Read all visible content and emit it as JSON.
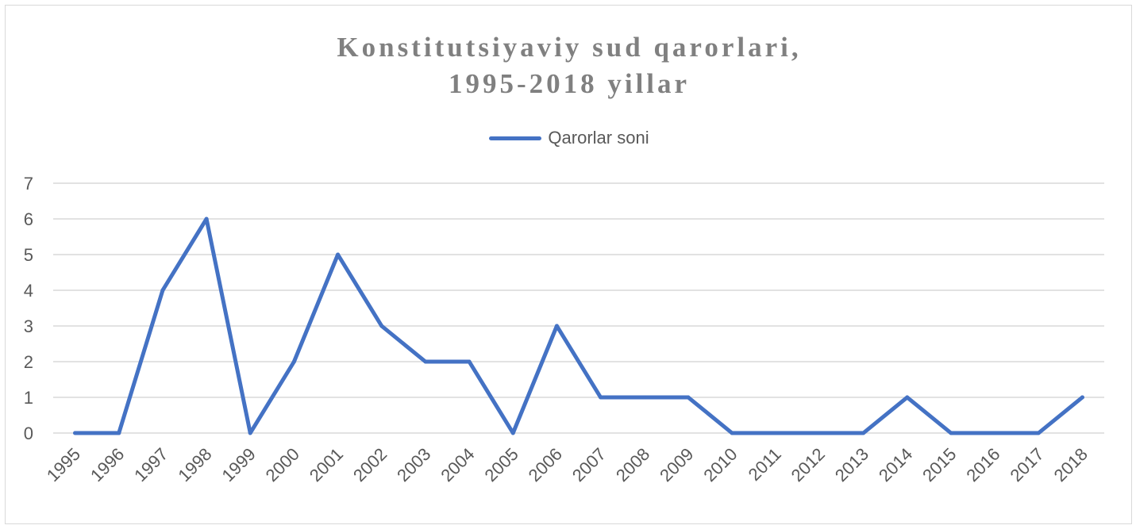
{
  "chart_data": {
    "type": "line",
    "title_line1": "Konstitutsiyaviy sud qarorlari,",
    "title_line2": "1995-2018 yillar",
    "categories": [
      "1995",
      "1996",
      "1997",
      "1998",
      "1999",
      "2000",
      "2001",
      "2002",
      "2003",
      "2004",
      "2005",
      "2006",
      "2007",
      "2008",
      "2009",
      "2010",
      "2011",
      "2012",
      "2013",
      "2014",
      "2015",
      "2016",
      "2017",
      "2018"
    ],
    "series": [
      {
        "name": "Qarorlar soni",
        "values": [
          0,
          0,
          4,
          6,
          0,
          2,
          5,
          3,
          2,
          2,
          0,
          3,
          1,
          1,
          1,
          0,
          0,
          0,
          0,
          1,
          0,
          0,
          0,
          1
        ],
        "color": "#4472c4"
      }
    ],
    "ylim": [
      0,
      7
    ],
    "yticks": [
      0,
      1,
      2,
      3,
      4,
      5,
      6,
      7
    ],
    "grid": true,
    "legend_position": "top-center",
    "colors": {
      "grid": "#d9d9d9",
      "text": "#595959",
      "title": "#808080"
    }
  }
}
